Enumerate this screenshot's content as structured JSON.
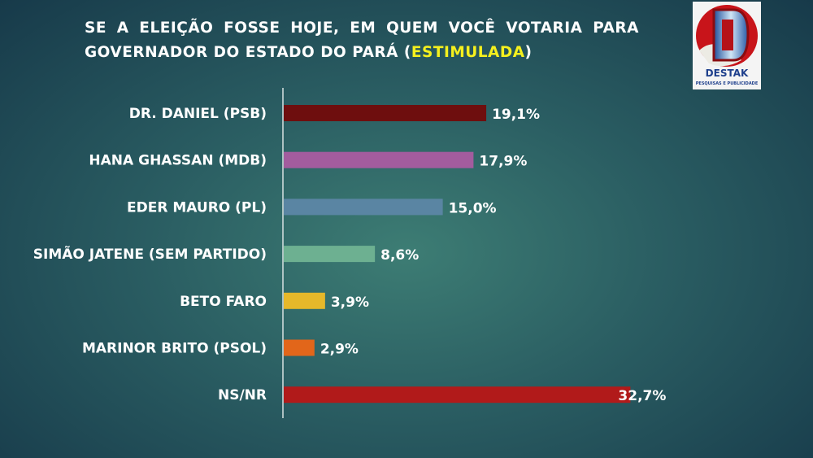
{
  "title": {
    "prefix": "SE A ELEIÇÃO FOSSE HOJE, EM QUEM VOCÊ VOTARIA PARA GOVERNADOR DO ESTADO DO PARÁ (",
    "highlight": "ESTIMULADA",
    "suffix": ")",
    "highlight_color": "#f5f01e"
  },
  "logo": {
    "name": "DESTAK",
    "tagline": "PESQUISAS E PUBLICIDADE"
  },
  "chart_data": {
    "type": "bar",
    "orientation": "horizontal",
    "title": "SE A ELEIÇÃO FOSSE HOJE, EM QUEM VOCÊ VOTARIA PARA GOVERNADOR DO ESTADO DO PARÁ (ESTIMULADA)",
    "categories": [
      "DR. DANIEL (PSB)",
      "HANA GHASSAN (MDB)",
      "EDER MAURO (PL)",
      "SIMÃO JATENE (SEM PARTIDO)",
      "BETO FARO",
      "MARINOR BRITO (PSOL)",
      "NS/NR"
    ],
    "values": [
      19.1,
      17.9,
      15.0,
      8.6,
      3.9,
      2.9,
      32.7
    ],
    "data_labels": [
      "19,1%",
      "17,9%",
      "15,0%",
      "8,6%",
      "3,9%",
      "2,9%",
      "32,7%"
    ],
    "colors": [
      "#6e0e0e",
      "#a35c9e",
      "#5a85a3",
      "#6db091",
      "#e6b82a",
      "#e2661a",
      "#b11a1a"
    ],
    "xlim": [
      0,
      40
    ],
    "grid": false
  }
}
